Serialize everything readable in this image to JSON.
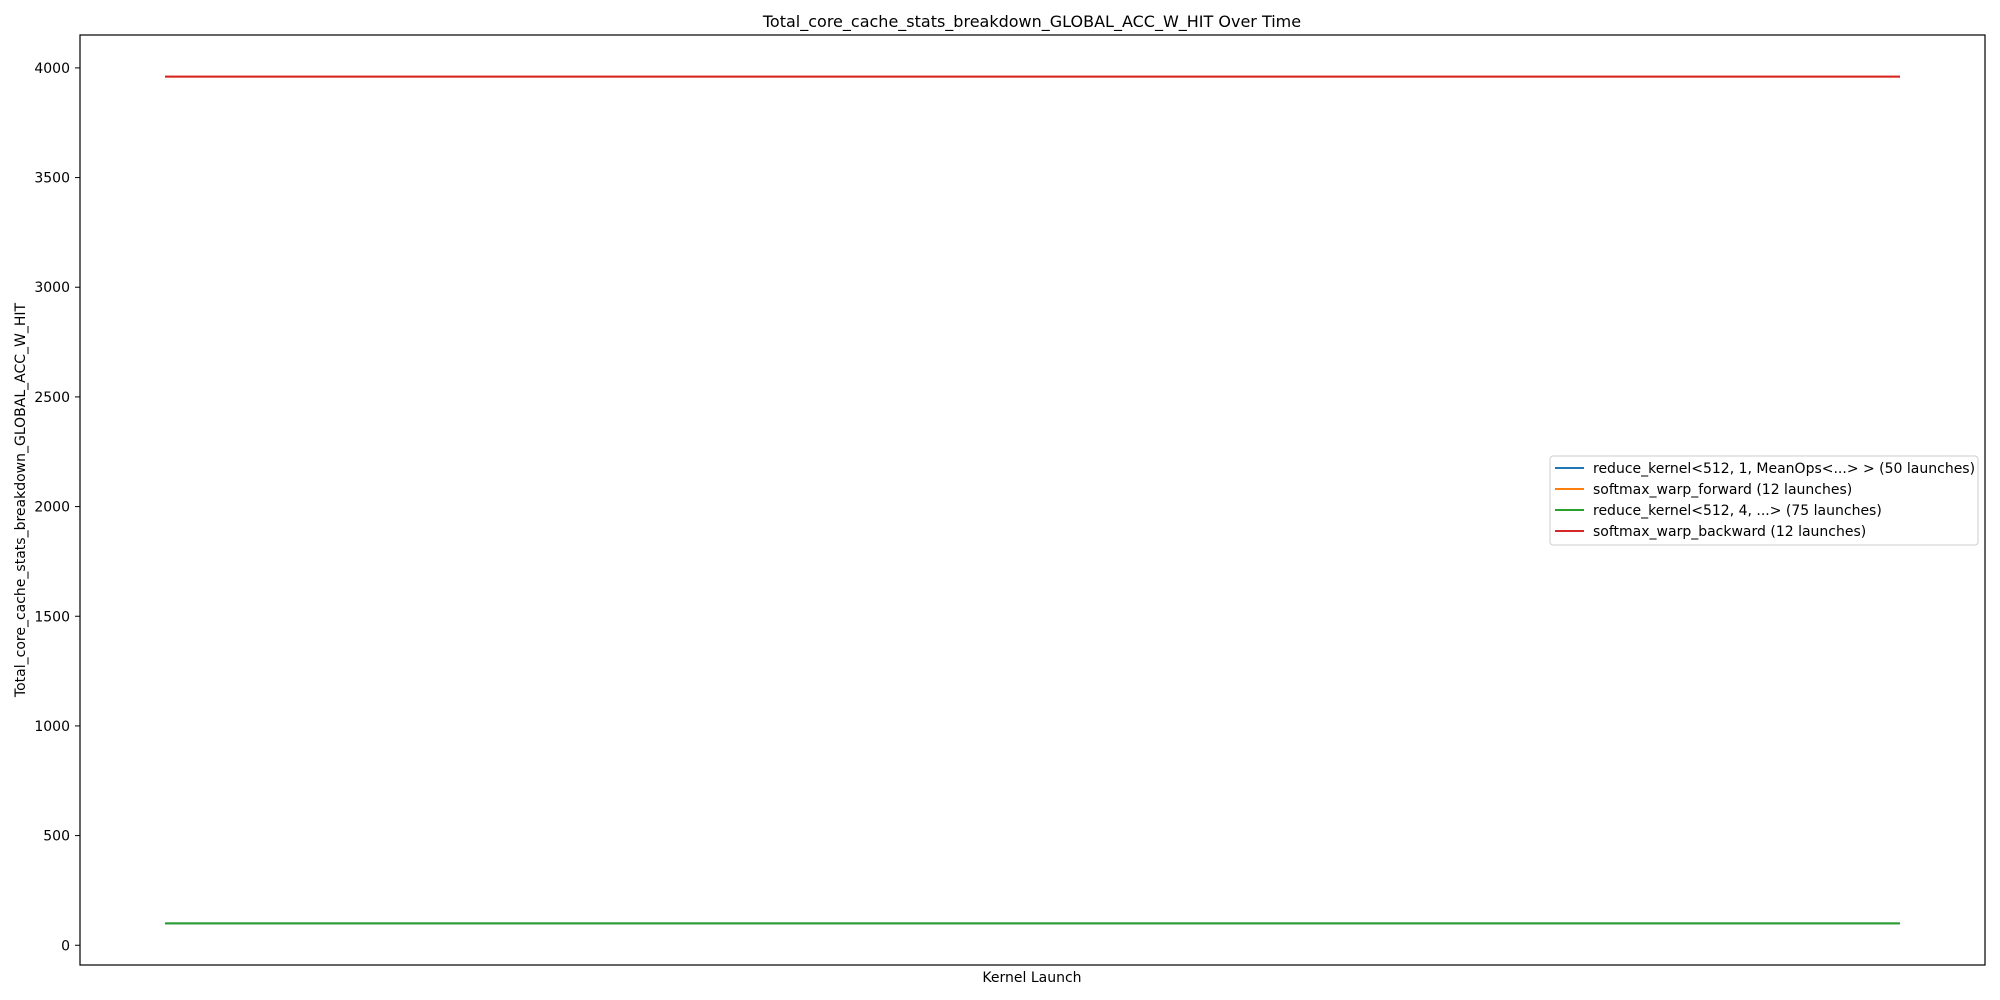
{
  "chart_data": {
    "type": "line",
    "title": "Total_core_cache_stats_breakdown_GLOBAL_ACC_W_HIT Over Time",
    "xlabel": "Kernel Launch",
    "ylabel": "Total_core_cache_stats_breakdown_GLOBAL_ACC_W_HIT",
    "ylim": [
      -90,
      4150
    ],
    "yticks": [
      0,
      500,
      1000,
      1500,
      2000,
      2500,
      3000,
      3500,
      4000
    ],
    "grid": false,
    "legend_position": "center-right",
    "series": [
      {
        "name": "reduce_kernel<512, 1, MeanOps<...> > (50 launches)",
        "color": "#1f77b4",
        "x": [
          0,
          1
        ],
        "values": [
          100,
          100
        ]
      },
      {
        "name": "softmax_warp_forward (12 launches)",
        "color": "#ff7f0e",
        "x": [
          0,
          1
        ],
        "values": [
          3960,
          3960
        ]
      },
      {
        "name": "reduce_kernel<512, 4, ...> (75 launches)",
        "color": "#2ca02c",
        "x": [
          0,
          1
        ],
        "values": [
          100,
          100
        ]
      },
      {
        "name": "softmax_warp_backward (12 launches)",
        "color": "#d62728",
        "x": [
          0,
          1
        ],
        "values": [
          3960,
          3960
        ]
      }
    ]
  }
}
